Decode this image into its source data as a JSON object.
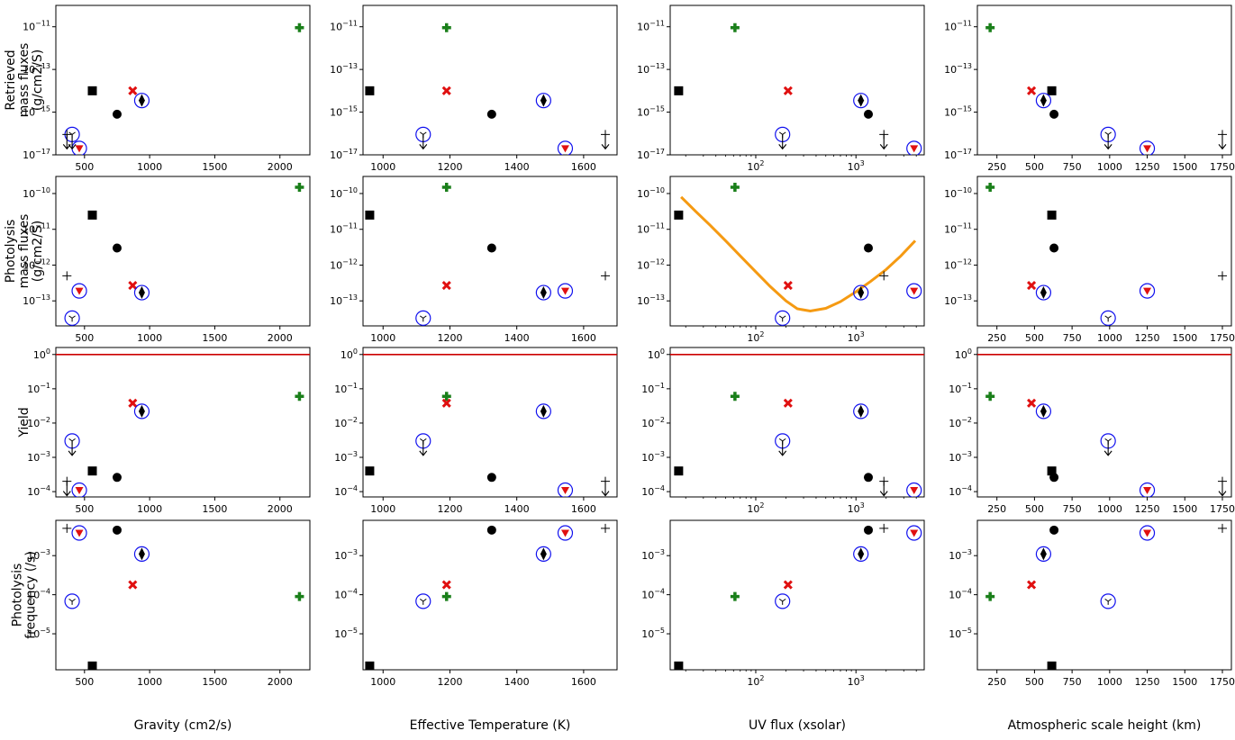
{
  "chart_data": {
    "type": "scatter",
    "layout": "4x4 grid of scatter panels",
    "columns": [
      {
        "id": "gravity",
        "xlabel": "Gravity (cm2/s)",
        "xscale": "linear",
        "xlim": [
          280,
          2230
        ],
        "xticks": [
          "500",
          "1000",
          "1500",
          "2000"
        ],
        "xtick_values": [
          500,
          1000,
          1500,
          2000
        ]
      },
      {
        "id": "teff",
        "xlabel": "Effective Temperature (K)",
        "xscale": "linear",
        "xlim": [
          940,
          1700
        ],
        "xticks": [
          "1000",
          "1200",
          "1400",
          "1600"
        ],
        "xtick_values": [
          1000,
          1200,
          1400,
          1600
        ]
      },
      {
        "id": "uvflux",
        "xlabel": "UV flux (xsolar)",
        "xscale": "log",
        "xlim": [
          14,
          4800
        ],
        "xticks": [
          "10^2",
          "10^3"
        ],
        "xtick_values": [
          100,
          1000
        ]
      },
      {
        "id": "scaleheight",
        "xlabel": "Atmospheric scale height (km)",
        "xscale": "linear",
        "xlim": [
          120,
          1810
        ],
        "xticks": [
          "250",
          "500",
          "750",
          "1000",
          "1250",
          "1500",
          "1750"
        ],
        "xtick_values": [
          250,
          500,
          750,
          1000,
          1250,
          1500,
          1750
        ]
      }
    ],
    "rows": [
      {
        "id": "retrieved",
        "ylabel": [
          "Retrieved",
          "mass fluxes",
          "(g/cm2/S)"
        ],
        "yscale": "log",
        "ylim": [
          1e-17,
          1e-10
        ],
        "yticks": [
          "10^-11",
          "10^-13",
          "10^-15",
          "10^-17"
        ],
        "ytick_values": [
          1e-11,
          1e-13,
          1e-15,
          1e-17
        ]
      },
      {
        "id": "photolysis_flux",
        "ylabel": [
          "Photolysis",
          "mass fluxes",
          "(g/cm2/S)"
        ],
        "yscale": "log",
        "ylim": [
          2e-14,
          3e-10
        ],
        "yticks": [
          "10^-10",
          "10^-11",
          "10^-12",
          "10^-13"
        ],
        "ytick_values": [
          1e-10,
          1e-11,
          1e-12,
          1e-13
        ],
        "hline": null
      },
      {
        "id": "yield",
        "ylabel": [
          "Yield"
        ],
        "yscale": "log",
        "ylim": [
          7e-05,
          1.6
        ],
        "yticks": [
          "10^0",
          "10^-1",
          "10^-2",
          "10^-3",
          "10^-4"
        ],
        "ytick_values": [
          1,
          0.1,
          0.01,
          0.001,
          0.0001
        ],
        "hline": 1
      },
      {
        "id": "frequency",
        "ylabel": [
          "Photolysis",
          "frequency (/s)"
        ],
        "yscale": "log",
        "ylim": [
          1.2e-06,
          0.008
        ],
        "yticks": [
          "10^-3",
          "10^-4",
          "10^-5"
        ],
        "ytick_values": [
          0.001,
          0.0001,
          1e-05
        ]
      }
    ],
    "planets": [
      {
        "marker": "plus-thick",
        "color": "#1a7f1a",
        "gravity": 2150,
        "teff": 1190,
        "uvflux": 62,
        "scaleheight": 205,
        "retrieved": 9e-12,
        "retrieved_upper_limit": false,
        "photolysis_flux": 1.5e-10,
        "yield": 0.06,
        "frequency": 9e-05
      },
      {
        "marker": "x-thick",
        "color": "#e01010",
        "gravity": 870,
        "teff": 1190,
        "uvflux": 210,
        "scaleheight": 480,
        "retrieved": 1e-14,
        "retrieved_upper_limit": false,
        "photolysis_flux": 2.7e-13,
        "yield": 0.038,
        "frequency": 0.00018
      },
      {
        "marker": "square",
        "color": "#000000",
        "gravity": 560,
        "teff": 960,
        "uvflux": 17,
        "scaleheight": 615,
        "retrieved": 1e-14,
        "retrieved_upper_limit": false,
        "photolysis_flux": 2.5e-11,
        "yield": 0.0004,
        "frequency": 1.5e-06
      },
      {
        "marker": "circle",
        "color": "#000000",
        "gravity": 750,
        "teff": 1325,
        "uvflux": 1330,
        "scaleheight": 630,
        "retrieved": 8e-16,
        "retrieved_upper_limit": false,
        "photolysis_flux": 3e-12,
        "yield": 0.00026,
        "frequency": 0.0045
      },
      {
        "marker": "diamond-circled",
        "color": "#000000",
        "gravity": 940,
        "teff": 1480,
        "uvflux": 1120,
        "scaleheight": 560,
        "retrieved": 3.5e-15,
        "retrieved_upper_limit": false,
        "photolysis_flux": 1.7e-13,
        "yield": 0.022,
        "frequency": 0.0011
      },
      {
        "marker": "triangle-circled",
        "color": "#e01010",
        "gravity": 460,
        "teff": 1545,
        "uvflux": 3800,
        "scaleheight": 1250,
        "retrieved": 2e-17,
        "retrieved_upper_limit": false,
        "photolysis_flux": 1.9e-13,
        "yield": 0.00011,
        "frequency": 0.0038
      },
      {
        "marker": "tri-circled",
        "color": "#000000",
        "gravity": 405,
        "teff": 1120,
        "uvflux": 185,
        "scaleheight": 990,
        "retrieved": 9e-17,
        "retrieved_upper_limit": true,
        "photolysis_flux": 3.3e-14,
        "yield": 0.003,
        "yield_upper_limit": true,
        "frequency": 6.8e-05
      },
      {
        "marker": "plus-thin",
        "color": "#000000",
        "gravity": 365,
        "teff": 1665,
        "uvflux": 1900,
        "scaleheight": 1750,
        "retrieved": 9e-17,
        "retrieved_upper_limit": true,
        "photolysis_flux": 5e-13,
        "yield": 0.0002,
        "yield_upper_limit": true,
        "frequency": 0.005
      }
    ],
    "curve": {
      "panel": "photolysis_flux-uvflux",
      "color": "#f59a12",
      "x": [
        18,
        25,
        35,
        50,
        70,
        100,
        140,
        200,
        260,
        350,
        500,
        700,
        1000,
        1400,
        2000,
        2800,
        3900
      ],
      "y": [
        8e-11,
        3.2e-11,
        1.3e-11,
        4.8e-12,
        1.8e-12,
        6.5e-13,
        2.5e-13,
        1e-13,
        6e-14,
        5.2e-14,
        6.2e-14,
        9.5e-14,
        1.8e-13,
        3.5e-13,
        7.5e-13,
        1.8e-12,
        4.8e-12
      ]
    },
    "hline_color": "#cc0000"
  }
}
